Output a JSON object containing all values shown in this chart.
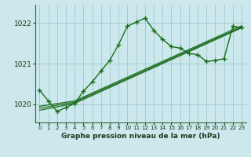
{
  "title": "Graphe pression niveau de la mer (hPa)",
  "bg_color": "#cce8ec",
  "grid_color": "#99cccc",
  "line_color": "#1a6b1a",
  "xlim": [
    -0.5,
    23.5
  ],
  "ylim": [
    1019.55,
    1022.45
  ],
  "yticks": [
    1020,
    1021,
    1022
  ],
  "xticks": [
    0,
    1,
    2,
    3,
    4,
    5,
    6,
    7,
    8,
    9,
    10,
    11,
    12,
    13,
    14,
    15,
    16,
    17,
    18,
    19,
    20,
    21,
    22,
    23
  ],
  "series1_x": [
    0,
    1,
    2,
    3,
    4,
    5,
    6,
    7,
    8,
    9,
    10,
    11,
    12,
    13,
    14,
    15,
    16,
    17,
    18,
    19,
    20,
    21,
    22,
    23
  ],
  "series1_y": [
    1020.35,
    1020.08,
    1019.82,
    1019.92,
    1020.02,
    1020.32,
    1020.55,
    1020.82,
    1021.08,
    1021.47,
    1021.92,
    1022.02,
    1022.12,
    1021.82,
    1021.6,
    1021.42,
    1021.38,
    1021.25,
    1021.22,
    1021.05,
    1021.08,
    1021.12,
    1021.92,
    1021.88
  ],
  "trend1_x": [
    0,
    4,
    23
  ],
  "trend1_y": [
    1019.85,
    1020.02,
    1021.88
  ],
  "trend2_x": [
    0,
    4,
    23
  ],
  "trend2_y": [
    1019.9,
    1020.05,
    1021.9
  ],
  "trend3_x": [
    0,
    4,
    23
  ],
  "trend3_y": [
    1019.95,
    1020.08,
    1021.93
  ]
}
